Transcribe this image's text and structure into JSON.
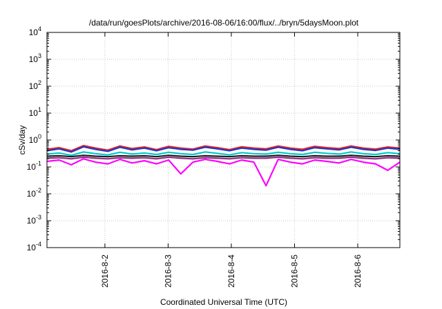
{
  "chart_data": {
    "type": "line",
    "title": "/data/run/goesPlots/archive/2016-08-06/16:00/flux/../bryn/5daysMoon.plot",
    "xlabel": "Coordinated Universal Time (UTC)",
    "ylabel": "cSv/day",
    "yscale": "log",
    "ylim": [
      0.0001,
      10000
    ],
    "xlim": [
      "2016-08-01T02:00",
      "2016-08-06T16:00"
    ],
    "y_ticks": [
      {
        "value": 0.0001,
        "base": "10",
        "exp": "-4"
      },
      {
        "value": 0.001,
        "base": "10",
        "exp": "-3"
      },
      {
        "value": 0.01,
        "base": "10",
        "exp": "-2"
      },
      {
        "value": 0.1,
        "base": "10",
        "exp": "-1"
      },
      {
        "value": 1,
        "base": "10",
        "exp": "0"
      },
      {
        "value": 10,
        "base": "10",
        "exp": "1"
      },
      {
        "value": 100,
        "base": "10",
        "exp": "2"
      },
      {
        "value": 1000,
        "base": "10",
        "exp": "3"
      },
      {
        "value": 10000,
        "base": "10",
        "exp": "4"
      }
    ],
    "x_ticks": [
      "2016-8-2",
      "2016-8-3",
      "2016-8-4",
      "2016-8-5",
      "2016-8-6"
    ],
    "x_tick_dates": [
      "2016-08-02T00:00",
      "2016-08-03T00:00",
      "2016-08-04T00:00",
      "2016-08-05T00:00",
      "2016-08-06T00:00"
    ],
    "grid": true,
    "legend": "none",
    "series": [
      {
        "color": "#e8231f",
        "values": [
          0.45,
          0.52,
          0.4,
          0.62,
          0.5,
          0.42,
          0.6,
          0.48,
          0.55,
          0.44,
          0.58,
          0.5,
          0.46,
          0.6,
          0.52,
          0.44,
          0.56,
          0.5,
          0.47,
          0.6,
          0.5,
          0.45,
          0.58,
          0.52,
          0.48,
          0.6,
          0.5,
          0.46,
          0.55,
          0.5
        ]
      },
      {
        "color": "#2233cc",
        "values": [
          0.4,
          0.47,
          0.36,
          0.56,
          0.45,
          0.38,
          0.54,
          0.43,
          0.5,
          0.4,
          0.52,
          0.45,
          0.42,
          0.54,
          0.47,
          0.4,
          0.5,
          0.45,
          0.42,
          0.54,
          0.45,
          0.4,
          0.52,
          0.47,
          0.43,
          0.54,
          0.45,
          0.41,
          0.5,
          0.45
        ]
      },
      {
        "color": "#00c8c8",
        "values": [
          0.3,
          0.33,
          0.27,
          0.36,
          0.31,
          0.28,
          0.35,
          0.3,
          0.33,
          0.29,
          0.35,
          0.31,
          0.29,
          0.36,
          0.32,
          0.28,
          0.34,
          0.31,
          0.3,
          0.35,
          0.31,
          0.29,
          0.35,
          0.32,
          0.3,
          0.36,
          0.31,
          0.29,
          0.34,
          0.31
        ]
      },
      {
        "color": "#1a1a1a",
        "values": [
          0.25,
          0.26,
          0.24,
          0.27,
          0.25,
          0.24,
          0.26,
          0.25,
          0.26,
          0.24,
          0.27,
          0.25,
          0.24,
          0.26,
          0.25,
          0.24,
          0.26,
          0.25,
          0.25,
          0.27,
          0.25,
          0.24,
          0.26,
          0.25,
          0.25,
          0.27,
          0.25,
          0.24,
          0.26,
          0.25
        ]
      },
      {
        "color": "#8e2a82",
        "values": [
          0.21,
          0.22,
          0.2,
          0.23,
          0.21,
          0.2,
          0.22,
          0.21,
          0.22,
          0.2,
          0.23,
          0.21,
          0.2,
          0.22,
          0.21,
          0.2,
          0.22,
          0.21,
          0.21,
          0.23,
          0.21,
          0.2,
          0.22,
          0.21,
          0.21,
          0.23,
          0.21,
          0.2,
          0.22,
          0.21
        ]
      },
      {
        "color": "#ff00ff",
        "values": [
          0.16,
          0.18,
          0.12,
          0.2,
          0.15,
          0.13,
          0.19,
          0.14,
          0.17,
          0.13,
          0.18,
          0.055,
          0.15,
          0.19,
          0.16,
          0.13,
          0.18,
          0.15,
          0.02,
          0.19,
          0.15,
          0.13,
          0.18,
          0.16,
          0.14,
          0.19,
          0.15,
          0.13,
          0.075,
          0.15
        ]
      }
    ]
  }
}
